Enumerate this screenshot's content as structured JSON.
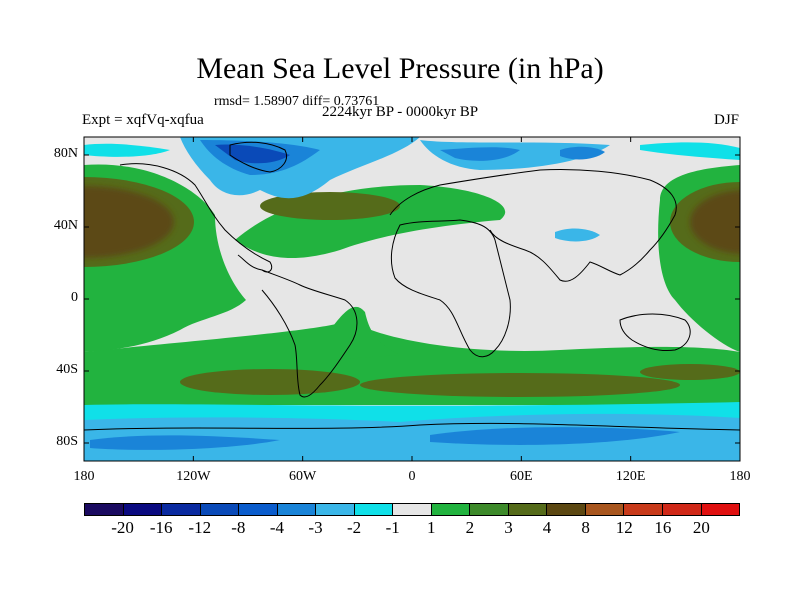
{
  "title": "Mean Sea Level Pressure (in hPa)",
  "stats": "rmsd= 1.58907 diff= 0.73761",
  "expt": "Expt = xqfVq-xqfua",
  "period": "2224kyr BP - 0000kyr BP",
  "season": "DJF",
  "chart_data": {
    "type": "heatmap",
    "variable": "Mean Sea Level Pressure anomaly",
    "units": "hPa",
    "x_ticks": [
      "180",
      "120W",
      "60W",
      "0",
      "60E",
      "120E",
      "180"
    ],
    "x_values": [
      -180,
      -120,
      -60,
      0,
      60,
      120,
      180
    ],
    "y_ticks": [
      "80N",
      "40N",
      "0",
      "40S",
      "80S"
    ],
    "y_values": [
      80,
      40,
      0,
      -40,
      -80
    ],
    "xlim": [
      -180,
      180
    ],
    "ylim": [
      -90,
      90
    ],
    "colorbar": {
      "labels": [
        "-20",
        "-16",
        "-12",
        "-8",
        "-4",
        "-3",
        "-2",
        "-1",
        "1",
        "2",
        "3",
        "4",
        "8",
        "12",
        "16",
        "20"
      ],
      "colors": [
        "#1a0a60",
        "#0a0a80",
        "#0a2aa0",
        "#0a4ab8",
        "#0a5ccc",
        "#1a84d8",
        "#3ab6e8",
        "#10e0e8",
        "#e6e6e6",
        "#22b33f",
        "#3d8a2a",
        "#556b1a",
        "#5c4812",
        "#a8561e",
        "#c83a1a",
        "#d02818",
        "#e01010"
      ]
    },
    "regions": [
      {
        "name": "north-pacific-high",
        "value": 8,
        "color": "#5c4812"
      },
      {
        "name": "north-atlantic-band",
        "value": 3,
        "color": "#3d8a2a"
      },
      {
        "name": "southern-ocean-band",
        "value": 2,
        "color": "#22b33f"
      },
      {
        "name": "southern-ocean-core",
        "value": 4,
        "color": "#556b1a"
      },
      {
        "name": "arctic-low",
        "value": -8,
        "color": "#0a4ab8"
      },
      {
        "name": "antarctic-low",
        "value": -2,
        "color": "#3ab6e8"
      }
    ]
  }
}
